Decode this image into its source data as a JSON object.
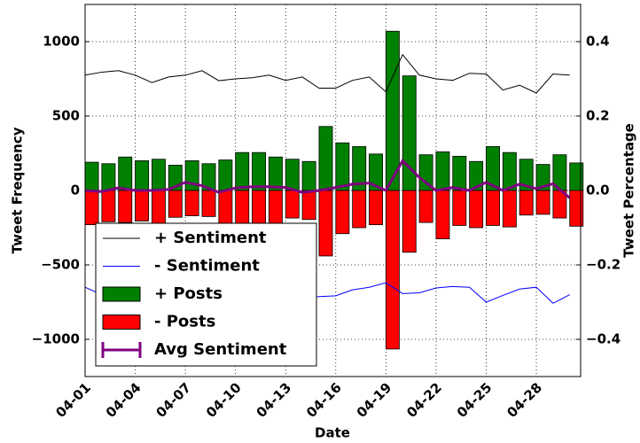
{
  "chart_data": {
    "type": "bar",
    "xlabel": "Date",
    "ylabel": "Tweet Frequency",
    "y2label": "Tweet Percentage",
    "categories": [
      "04-01",
      null,
      null,
      "04-04",
      null,
      null,
      "04-07",
      null,
      null,
      "04-10",
      null,
      null,
      "04-13",
      null,
      null,
      "04-16",
      null,
      null,
      "04-19",
      null,
      null,
      "04-22",
      null,
      null,
      "04-25",
      null,
      null,
      "04-28",
      null,
      null
    ],
    "ylim": [
      -1250,
      1250
    ],
    "yticks": [
      {
        "value": -1000,
        "label": "−1000"
      },
      {
        "value": -500,
        "label": "−500"
      },
      0,
      500,
      1000
    ],
    "y2lim": [
      -0.5,
      0.5
    ],
    "y2ticks": [
      {
        "value": -0.4,
        "label": "−0.4"
      },
      {
        "value": -0.2,
        "label": "−0.2"
      },
      {
        "value": 0,
        "label": "0.0"
      },
      0.2,
      0.4
    ],
    "grid": true,
    "legend": "lower left",
    "series": [
      {
        "name": "+ Sentiment",
        "type": "line",
        "axis": "y2",
        "color": "#000000",
        "values": [
          0.31,
          0.318,
          0.322,
          0.31,
          0.29,
          0.305,
          0.31,
          0.322,
          0.295,
          0.3,
          0.303,
          0.31,
          0.296,
          0.305,
          0.275,
          0.275,
          0.296,
          0.305,
          0.265,
          0.365,
          0.31,
          0.3,
          0.296,
          0.315,
          0.313,
          0.27,
          0.283,
          0.262,
          0.313,
          0.31
        ]
      },
      {
        "name": "- Sentiment",
        "type": "line",
        "axis": "y2",
        "color": "#0000ff",
        "values": [
          -0.26,
          -0.28,
          -0.29,
          -0.28,
          -0.29,
          -0.28,
          -0.29,
          -0.29,
          -0.28,
          -0.29,
          -0.29,
          -0.29,
          -0.29,
          -0.29,
          -0.285,
          -0.283,
          -0.267,
          -0.26,
          -0.248,
          -0.277,
          -0.275,
          -0.262,
          -0.258,
          -0.26,
          -0.3,
          -0.282,
          -0.265,
          -0.26,
          -0.303,
          -0.28
        ]
      },
      {
        "name": "+ Posts",
        "type": "bar",
        "color": "#008000",
        "values": [
          190,
          180,
          225,
          200,
          210,
          170,
          200,
          180,
          205,
          255,
          255,
          225,
          210,
          195,
          430,
          320,
          295,
          245,
          1070,
          770,
          240,
          260,
          230,
          195,
          295,
          255,
          210,
          175,
          240,
          185
        ]
      },
      {
        "name": "- Posts",
        "type": "bar",
        "color": "#ff0000",
        "values": [
          -230,
          -210,
          -215,
          -205,
          -225,
          -180,
          -170,
          -175,
          -230,
          -235,
          -230,
          -220,
          -185,
          -195,
          -440,
          -290,
          -250,
          -230,
          -1065,
          -415,
          -215,
          -325,
          -235,
          -250,
          -235,
          -245,
          -165,
          -160,
          -185,
          -240
        ]
      },
      {
        "name": "Avg Sentiment",
        "type": "errorline",
        "axis": "y2",
        "color": "#800080",
        "values": [
          0,
          -0.003,
          0.007,
          0,
          0,
          0.003,
          0.022,
          0.013,
          -0.005,
          0.007,
          0.01,
          0.01,
          0.008,
          -0.005,
          0,
          0.008,
          0.017,
          0.02,
          0,
          0.08,
          0.035,
          0,
          0.008,
          0,
          0.022,
          0,
          0.017,
          0.005,
          0.018,
          -0.02
        ]
      }
    ]
  }
}
